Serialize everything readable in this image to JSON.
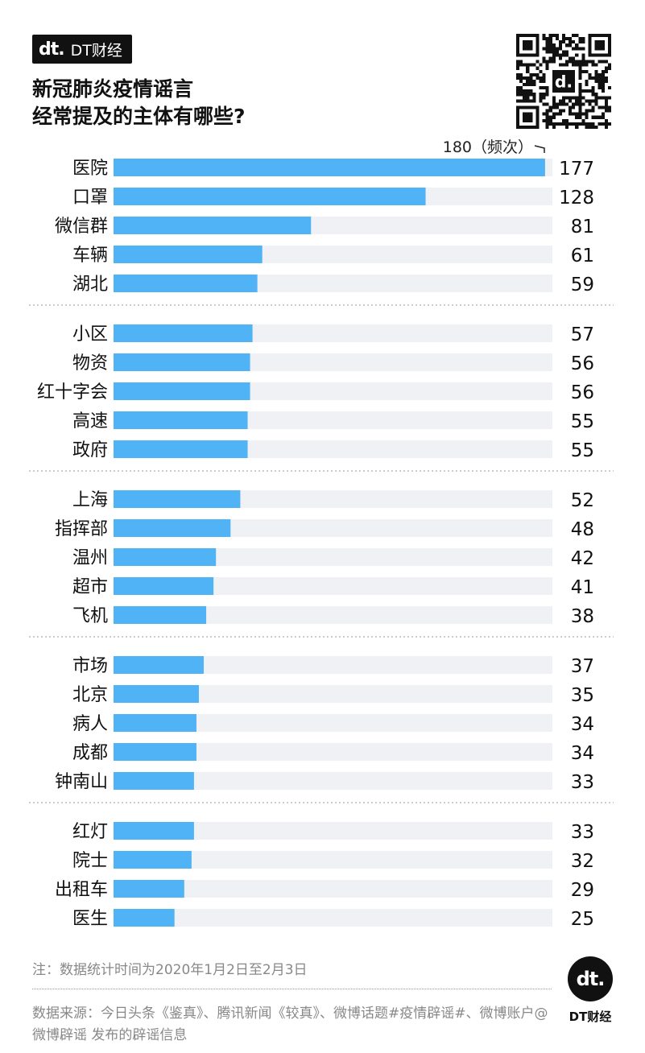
{
  "brand": {
    "mark": "dt.",
    "name": "DT财经"
  },
  "title_lines": [
    "新冠肺炎疫情谣言",
    "经常提及的主体有哪些?"
  ],
  "chart_data": {
    "type": "bar",
    "orientation": "horizontal",
    "title": "新冠肺炎疫情谣言经常提及的主体有哪些?",
    "axis_max_label": "180（频次）",
    "xlim": [
      0,
      180
    ],
    "bar_color": "#4fb3f6",
    "track_color": "#f0f1f4",
    "groups": [
      {
        "categories": [
          "医院",
          "口罩",
          "微信群",
          "车辆",
          "湖北"
        ],
        "values": [
          177,
          128,
          81,
          61,
          59
        ]
      },
      {
        "categories": [
          "小区",
          "物资",
          "红十字会",
          "高速",
          "政府"
        ],
        "values": [
          57,
          56,
          56,
          55,
          55
        ]
      },
      {
        "categories": [
          "上海",
          "指挥部",
          "温州",
          "超市",
          "飞机"
        ],
        "values": [
          52,
          48,
          42,
          41,
          38
        ]
      },
      {
        "categories": [
          "市场",
          "北京",
          "病人",
          "成都",
          "钟南山"
        ],
        "values": [
          37,
          35,
          34,
          34,
          33
        ]
      },
      {
        "categories": [
          "红灯",
          "院士",
          "出租车",
          "医生"
        ],
        "values": [
          33,
          32,
          29,
          25
        ]
      }
    ]
  },
  "note": "注：数据统计时间为2020年1月2日至2月3日",
  "source": "数据来源：今日头条《鉴真》、腾讯新闻《较真》、微博话题#疫情辟谣#、微博账户@微博辟谣 发布的辟谣信息"
}
